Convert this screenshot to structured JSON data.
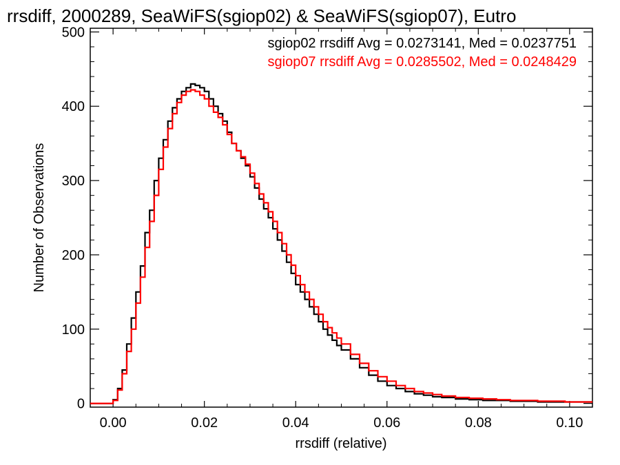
{
  "chart_data": {
    "type": "line",
    "title": "rrsdiff, 2000289, SeaWiFS(sgiop02) & SeaWiFS(sgiop07), Eutro",
    "xlabel": "rrsdiff (relative)",
    "ylabel": "Number of Observations",
    "xlim": [
      -0.005,
      0.105
    ],
    "ylim": [
      -5,
      505
    ],
    "xticks": [
      "0.00",
      "0.02",
      "0.04",
      "0.06",
      "0.08",
      "0.10"
    ],
    "yticks": [
      "0",
      "100",
      "200",
      "300",
      "400",
      "500"
    ],
    "legend": [
      "sgiop02 rrsdiff Avg = 0.0273141, Med = 0.0237751",
      "sgiop07 rrsdiff Avg = 0.0285502, Med = 0.0248429"
    ],
    "legend_position": "top-right",
    "histogram_style": "step",
    "series": [
      {
        "color": "#000000",
        "x": [
          -0.005,
          0.0,
          0.001,
          0.002,
          0.003,
          0.004,
          0.005,
          0.006,
          0.007,
          0.008,
          0.009,
          0.01,
          0.011,
          0.012,
          0.013,
          0.014,
          0.015,
          0.016,
          0.017,
          0.018,
          0.019,
          0.02,
          0.021,
          0.022,
          0.023,
          0.024,
          0.025,
          0.026,
          0.027,
          0.028,
          0.029,
          0.03,
          0.031,
          0.032,
          0.033,
          0.034,
          0.035,
          0.036,
          0.037,
          0.038,
          0.039,
          0.04,
          0.041,
          0.042,
          0.043,
          0.044,
          0.045,
          0.046,
          0.047,
          0.048,
          0.049,
          0.05,
          0.052,
          0.054,
          0.056,
          0.058,
          0.06,
          0.062,
          0.064,
          0.066,
          0.068,
          0.07,
          0.072,
          0.075,
          0.078,
          0.081,
          0.084,
          0.087,
          0.09,
          0.093,
          0.096,
          0.099,
          0.102,
          0.105
        ],
        "y": [
          0,
          5,
          20,
          45,
          80,
          115,
          150,
          185,
          230,
          260,
          300,
          330,
          355,
          380,
          398,
          410,
          420,
          425,
          430,
          428,
          425,
          420,
          410,
          400,
          390,
          380,
          365,
          350,
          340,
          330,
          320,
          305,
          290,
          275,
          262,
          250,
          235,
          220,
          205,
          190,
          175,
          160,
          150,
          140,
          130,
          120,
          110,
          100,
          92,
          85,
          78,
          72,
          60,
          48,
          38,
          30,
          24,
          20,
          16,
          13,
          11,
          9,
          8,
          6,
          5,
          4,
          4,
          3,
          3,
          2,
          2,
          2,
          2,
          2
        ]
      },
      {
        "color": "#ff0000",
        "x": [
          -0.005,
          0.0,
          0.001,
          0.002,
          0.003,
          0.004,
          0.005,
          0.006,
          0.007,
          0.008,
          0.009,
          0.01,
          0.011,
          0.012,
          0.013,
          0.014,
          0.015,
          0.016,
          0.017,
          0.018,
          0.019,
          0.02,
          0.021,
          0.022,
          0.023,
          0.024,
          0.025,
          0.026,
          0.027,
          0.028,
          0.029,
          0.03,
          0.031,
          0.032,
          0.033,
          0.034,
          0.035,
          0.036,
          0.037,
          0.038,
          0.039,
          0.04,
          0.041,
          0.042,
          0.043,
          0.044,
          0.045,
          0.046,
          0.047,
          0.048,
          0.049,
          0.05,
          0.052,
          0.054,
          0.056,
          0.058,
          0.06,
          0.062,
          0.064,
          0.066,
          0.068,
          0.07,
          0.072,
          0.075,
          0.078,
          0.081,
          0.084,
          0.087,
          0.09,
          0.093,
          0.096,
          0.099,
          0.102,
          0.105
        ],
        "y": [
          0,
          4,
          18,
          40,
          70,
          100,
          135,
          170,
          210,
          245,
          280,
          315,
          345,
          370,
          390,
          405,
          415,
          420,
          422,
          420,
          415,
          410,
          400,
          392,
          385,
          375,
          362,
          350,
          340,
          332,
          322,
          310,
          296,
          282,
          270,
          258,
          245,
          230,
          215,
          200,
          186,
          172,
          160,
          150,
          140,
          130,
          120,
          110,
          102,
          95,
          88,
          80,
          66,
          54,
          44,
          36,
          30,
          24,
          20,
          16,
          14,
          12,
          10,
          8,
          7,
          6,
          5,
          4,
          4,
          3,
          3,
          2,
          2,
          2
        ]
      }
    ]
  }
}
